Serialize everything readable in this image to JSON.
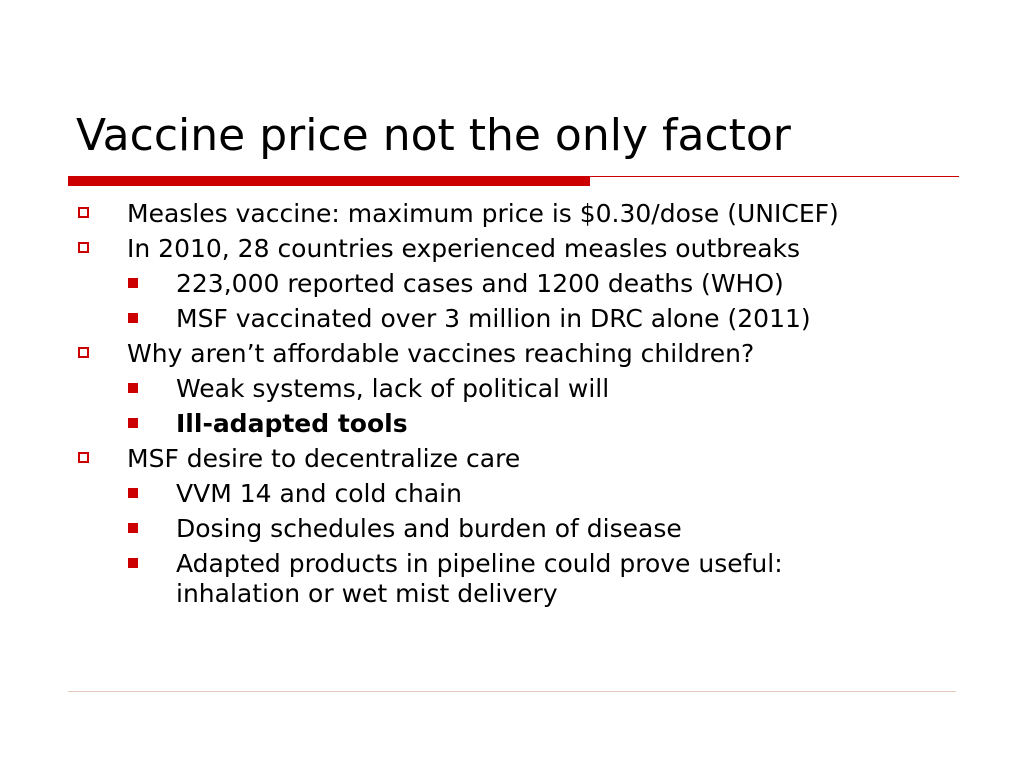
{
  "slide": {
    "title": "Vaccine price not the only factor",
    "accent_color": "#cc0000",
    "bullets": [
      {
        "text": "Measles vaccine: maximum price is $0.30/dose (UNICEF)",
        "icon": "hollow-square-bullet"
      },
      {
        "text": "In 2010, 28 countries experienced measles outbreaks",
        "icon": "hollow-square-bullet",
        "sub": [
          {
            "text": "223,000 reported cases and 1200 deaths (WHO)",
            "icon": "solid-square-bullet"
          },
          {
            "text": "MSF vaccinated over 3 million in DRC alone (2011)",
            "icon": "solid-square-bullet"
          }
        ]
      },
      {
        "text": "Why aren’t affordable vaccines reaching children?",
        "icon": "hollow-square-bullet",
        "sub": [
          {
            "text": "Weak systems, lack of political will",
            "icon": "solid-square-bullet"
          },
          {
            "text": "Ill-adapted tools",
            "icon": "solid-square-bullet",
            "bold": true
          }
        ]
      },
      {
        "text": "MSF desire to decentralize care",
        "icon": "hollow-square-bullet",
        "sub": [
          {
            "text": "VVM 14 and cold chain",
            "icon": "solid-square-bullet"
          },
          {
            "text": "Dosing schedules and burden of disease",
            "icon": "solid-square-bullet"
          },
          {
            "text": "Adapted products in pipeline could prove useful: inhalation or wet mist delivery",
            "icon": "solid-square-bullet"
          }
        ]
      }
    ]
  }
}
